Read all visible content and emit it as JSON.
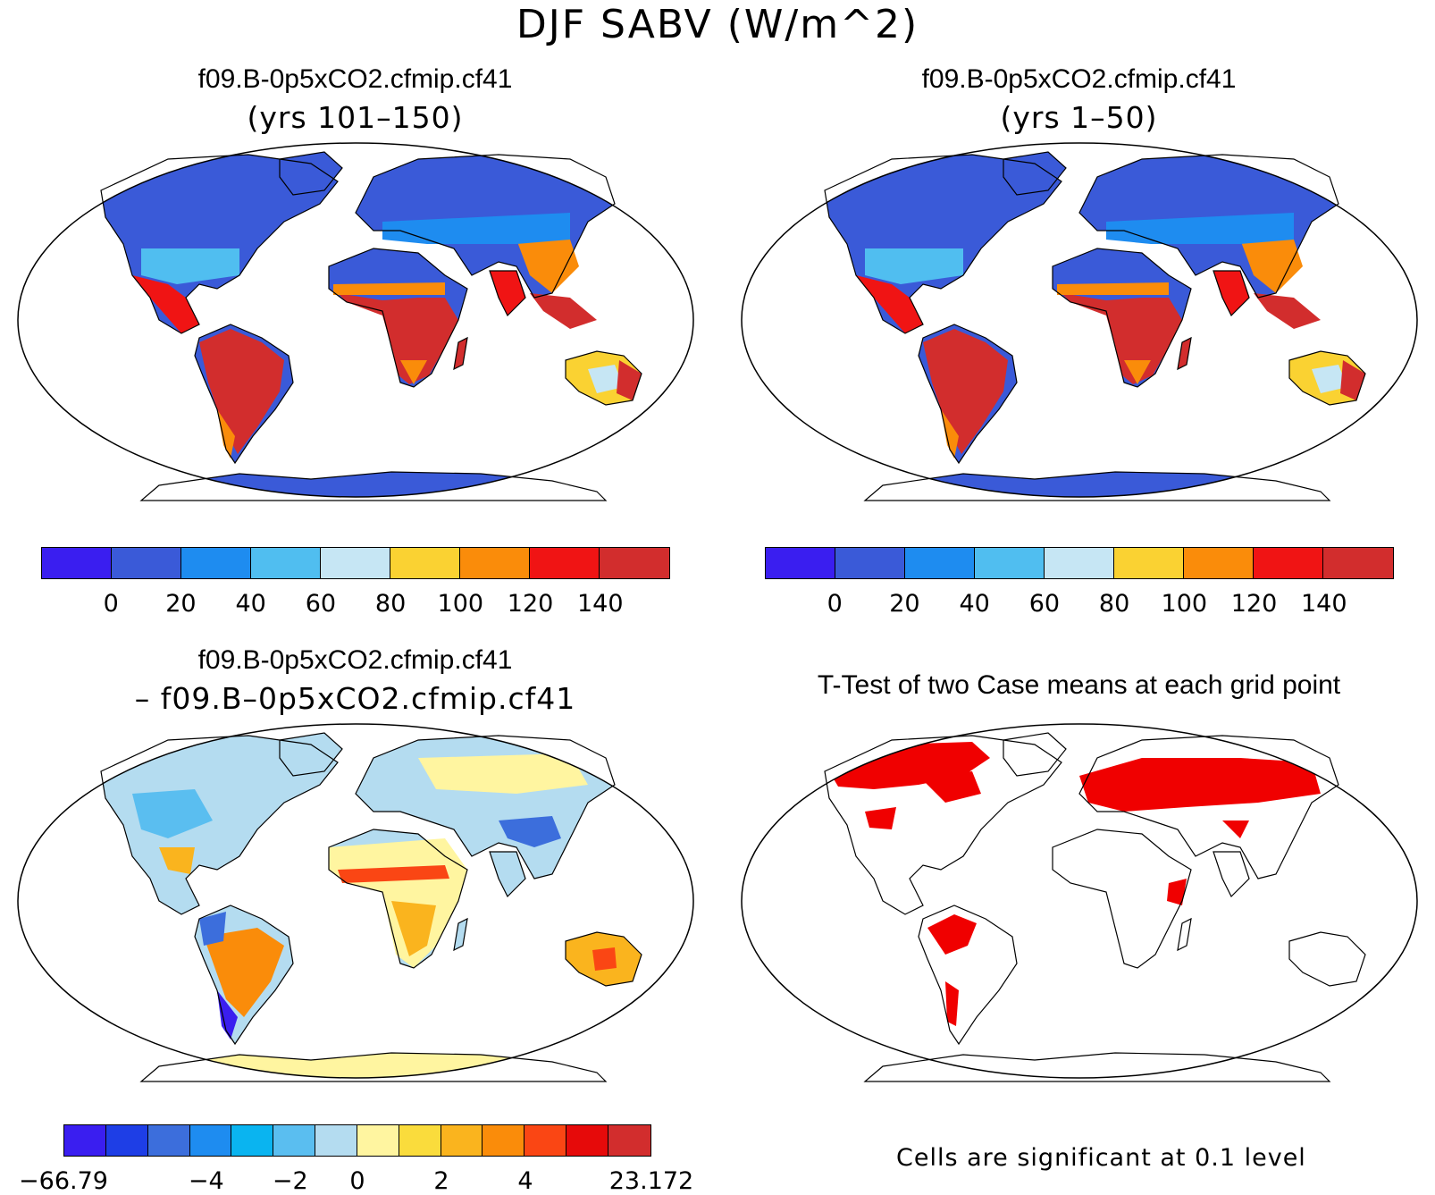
{
  "title": "DJF SABV (W/m^2)",
  "panels": [
    {
      "id": "p1",
      "title": "f09.B-0p5xCO2.cfmip.cf41",
      "subtitle": "(yrs 101–150)"
    },
    {
      "id": "p2",
      "title": "f09.B-0p5xCO2.cfmip.cf41",
      "subtitle": "(yrs 1–50)"
    },
    {
      "id": "p3",
      "title": "f09.B-0p5xCO2.cfmip.cf41",
      "subtitle": "– f09.B–0p5xCO2.cfmip.cf41"
    },
    {
      "id": "p4",
      "title": "T-Test of two Case means at each grid point",
      "subtitle": ""
    }
  ],
  "colorbar_abs": {
    "colors": [
      "#3a1ef0",
      "#3a5ad8",
      "#1e8cf0",
      "#50bef0",
      "#c6e6f4",
      "#fad232",
      "#fa8c0a",
      "#f01414",
      "#d22d2d"
    ],
    "ticks": [
      "0",
      "20",
      "40",
      "60",
      "80",
      "100",
      "120",
      "140"
    ]
  },
  "colorbar_diff": {
    "colors": [
      "#3a1ef0",
      "#1e3ee6",
      "#3c6edc",
      "#1e8cf0",
      "#0ab4f0",
      "#5abef0",
      "#b4dcf0",
      "#fff5a0",
      "#fadc3c",
      "#fab41e",
      "#fa8c0a",
      "#fa4614",
      "#e60a0a",
      "#d22d2d"
    ],
    "ticks": [
      "−66.79",
      "−4",
      "−2",
      "0",
      "2",
      "4",
      "23.172"
    ]
  },
  "significance_note": "Cells are significant at 0.1 level",
  "legend_colors": {
    "land_blue": "#3a5ad8",
    "land_red": "#d22d2d",
    "ttest_red": "#f00000",
    "diff_yellow": "#fff5a0"
  }
}
